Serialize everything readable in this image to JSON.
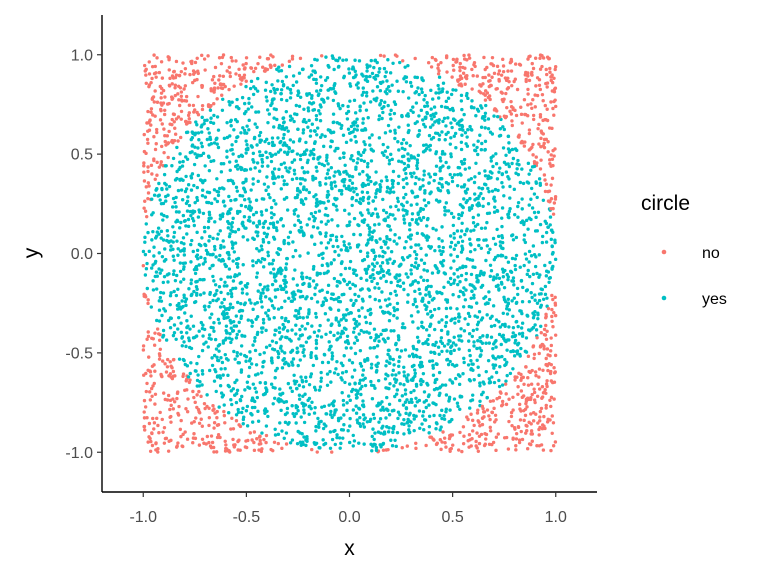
{
  "chart_data": {
    "type": "scatter",
    "title": "",
    "xlabel": "x",
    "ylabel": "y",
    "xlim": [
      -1.2,
      1.2
    ],
    "ylim": [
      -1.2,
      1.2
    ],
    "x_ticks": [
      -1.0,
      -0.5,
      0.0,
      0.5,
      1.0
    ],
    "x_tick_labels": [
      "-1.0",
      "-0.5",
      "0.0",
      "0.5",
      "1.0"
    ],
    "y_ticks": [
      -1.0,
      -0.5,
      0.0,
      0.5,
      1.0
    ],
    "y_tick_labels": [
      "-1.0",
      "-0.5",
      "0.0",
      "0.5",
      "1.0"
    ],
    "grid": false,
    "legend": {
      "title": "circle",
      "placement": "right",
      "entries": [
        {
          "label": "no",
          "color": "#F8766D"
        },
        {
          "label": "yes",
          "color": "#00BFC4"
        }
      ]
    },
    "series": [
      {
        "name": "no",
        "color": "#F8766D",
        "rule": "x^2 + y^2 > 1",
        "points": [
          [
            -0.95,
            0.95
          ],
          [
            -0.9,
            0.82
          ],
          [
            -0.82,
            0.9
          ],
          [
            -0.75,
            0.78
          ],
          [
            -0.95,
            0.7
          ],
          [
            0.92,
            0.93
          ],
          [
            0.85,
            0.8
          ],
          [
            0.78,
            0.9
          ],
          [
            0.95,
            0.72
          ],
          [
            0.7,
            0.85
          ],
          [
            -0.93,
            -0.93
          ],
          [
            -0.85,
            -0.8
          ],
          [
            -0.78,
            -0.92
          ],
          [
            -0.95,
            -0.72
          ],
          [
            -0.7,
            -0.88
          ],
          [
            0.93,
            -0.95
          ],
          [
            0.85,
            -0.82
          ],
          [
            0.75,
            -0.9
          ],
          [
            0.95,
            -0.7
          ],
          [
            0.68,
            -0.86
          ]
        ]
      },
      {
        "name": "yes",
        "color": "#00BFC4",
        "rule": "x^2 + y^2 <= 1",
        "points": [
          [
            0.0,
            0.0
          ],
          [
            0.5,
            0.5
          ],
          [
            -0.5,
            0.5
          ],
          [
            0.5,
            -0.5
          ],
          [
            -0.5,
            -0.5
          ],
          [
            0.9,
            0.1
          ],
          [
            -0.9,
            -0.1
          ],
          [
            0.1,
            0.9
          ],
          [
            -0.1,
            -0.9
          ],
          [
            0.3,
            -0.2
          ],
          [
            -0.6,
            0.2
          ],
          [
            0.2,
            0.6
          ],
          [
            0.7,
            -0.4
          ],
          [
            -0.3,
            -0.7
          ],
          [
            0.6,
            0.3
          ],
          [
            -0.4,
            0.8
          ],
          [
            0.8,
            -0.5
          ],
          [
            -0.7,
            -0.6
          ],
          [
            0.0,
            0.95
          ],
          [
            -0.95,
            0.2
          ]
        ]
      }
    ],
    "sample_count": 5000,
    "sample_range": [
      -1.0,
      1.0
    ]
  }
}
